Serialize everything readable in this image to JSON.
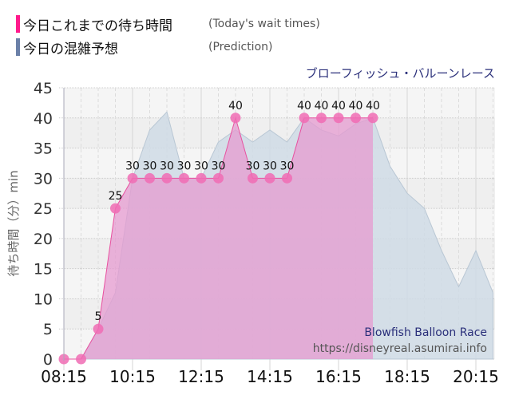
{
  "legend": {
    "today": {
      "label_ja": "今日これまでの待ち時間",
      "label_en": "(Today's wait times)",
      "color": "#ff1a8c"
    },
    "prediction": {
      "label_ja": "今日の混雑予想",
      "label_en": "(Prediction)",
      "color": "#6b80a8"
    }
  },
  "attraction": {
    "name_ja": "ブローフィッシュ・バルーンレース",
    "name_en": "Blowfish Balloon Race",
    "source_url": "https://disneyreal.asumirai.info"
  },
  "colors": {
    "today_fill": "#e59bd0",
    "today_line": "#e8509f",
    "today_point": "#f06cb4",
    "prediction_fill": "#cfdbe5",
    "prediction_line": "#b9c7d4",
    "plot_bg": "#f5f5f5",
    "grid": "#cccccc"
  },
  "chart_data": {
    "type": "area",
    "title": "ブローフィッシュ・バルーンレース",
    "subtitle": "Blowfish Balloon Race",
    "xlabel": "",
    "ylabel": "待ち時間（分）min",
    "ylim": [
      0,
      45
    ],
    "yticks": [
      0,
      5,
      10,
      15,
      20,
      25,
      30,
      35,
      40,
      45
    ],
    "xticks": [
      "08:15",
      "10:15",
      "12:15",
      "14:15",
      "16:15",
      "18:15",
      "20:15"
    ],
    "grid": true,
    "legend_position": "top-left",
    "series": [
      {
        "name": "今日これまでの待ち時間 (Today's wait times)",
        "x": [
          "08:15",
          "08:45",
          "09:15",
          "09:45",
          "10:15",
          "10:45",
          "11:15",
          "11:45",
          "12:15",
          "12:45",
          "13:15",
          "13:45",
          "14:15",
          "14:45",
          "15:15",
          "15:45",
          "16:15",
          "16:45",
          "17:15"
        ],
        "values": [
          0,
          0,
          5,
          25,
          30,
          30,
          30,
          30,
          30,
          30,
          40,
          30,
          30,
          30,
          40,
          40,
          40,
          40,
          40
        ],
        "labels": [
          "",
          "",
          "5",
          "25",
          "30",
          "30",
          "30",
          "30",
          "30",
          "30",
          "40",
          "30",
          "30",
          "30",
          "40",
          "40",
          "40",
          "40",
          "40"
        ]
      },
      {
        "name": "今日の混雑予想 (Prediction)",
        "x": [
          "08:45",
          "09:15",
          "09:45",
          "10:15",
          "10:45",
          "11:15",
          "11:45",
          "12:15",
          "12:45",
          "13:15",
          "13:45",
          "14:15",
          "14:45",
          "15:15",
          "15:45",
          "16:15",
          "16:45",
          "17:15",
          "17:45",
          "18:15",
          "18:45",
          "19:15",
          "19:45",
          "20:15",
          "20:45"
        ],
        "values": [
          0,
          5,
          11,
          30,
          38,
          41,
          30,
          30,
          36,
          38,
          36,
          38,
          36,
          40,
          38,
          37,
          39,
          40,
          32,
          27.5,
          25,
          18,
          12,
          18,
          11
        ]
      }
    ]
  }
}
